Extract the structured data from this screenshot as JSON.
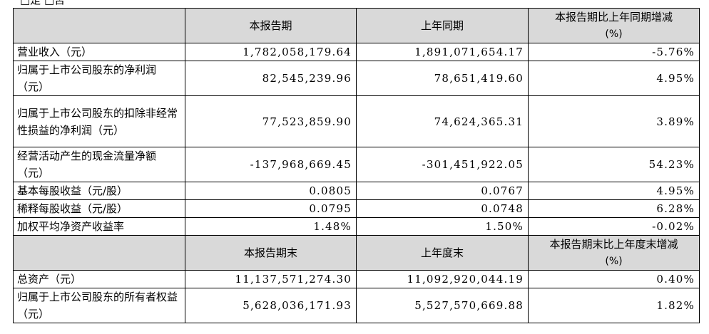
{
  "top_note": "□是 □否",
  "header1": {
    "current": "本报告期",
    "prior": "上年同期",
    "change_line1": "本报告期比上年同期增减",
    "change_line2": "(%)"
  },
  "rows1": [
    {
      "label": "营业收入（元）",
      "current": "1,782,058,179.64",
      "prior": "1,891,071,654.17",
      "change": "-5.76%"
    },
    {
      "label": "归属于上市公司股东的净利润（元）",
      "current": "82,545,239.96",
      "prior": "78,651,419.60",
      "change": "4.95%"
    },
    {
      "label": "归属于上市公司股东的扣除非经常性损益的净利润（元）",
      "current": "77,523,859.90",
      "prior": "74,624,365.31",
      "change": "3.89%"
    },
    {
      "label": "经营活动产生的现金流量净额（元）",
      "current": "-137,968,669.45",
      "prior": "-301,451,922.05",
      "change": "54.23%"
    },
    {
      "label": "基本每股收益（元/股）",
      "current": "0.0805",
      "prior": "0.0767",
      "change": "4.95%"
    },
    {
      "label": "稀释每股收益（元/股）",
      "current": "0.0795",
      "prior": "0.0748",
      "change": "6.28%"
    },
    {
      "label": "加权平均净资产收益率",
      "current": "1.48%",
      "prior": "1.50%",
      "change": "-0.02%"
    }
  ],
  "header2": {
    "current": "本报告期末",
    "prior": "上年度末",
    "change_line1": "本报告期末比上年度末增减",
    "change_line2": "(%)"
  },
  "rows2": [
    {
      "label": "总资产（元）",
      "current": "11,137,571,274.30",
      "prior": "11,092,920,044.19",
      "change": "0.40%"
    },
    {
      "label": "归属于上市公司股东的所有者权益（元）",
      "current": "5,628,036,171.93",
      "prior": "5,527,570,669.88",
      "change": "1.82%"
    }
  ]
}
